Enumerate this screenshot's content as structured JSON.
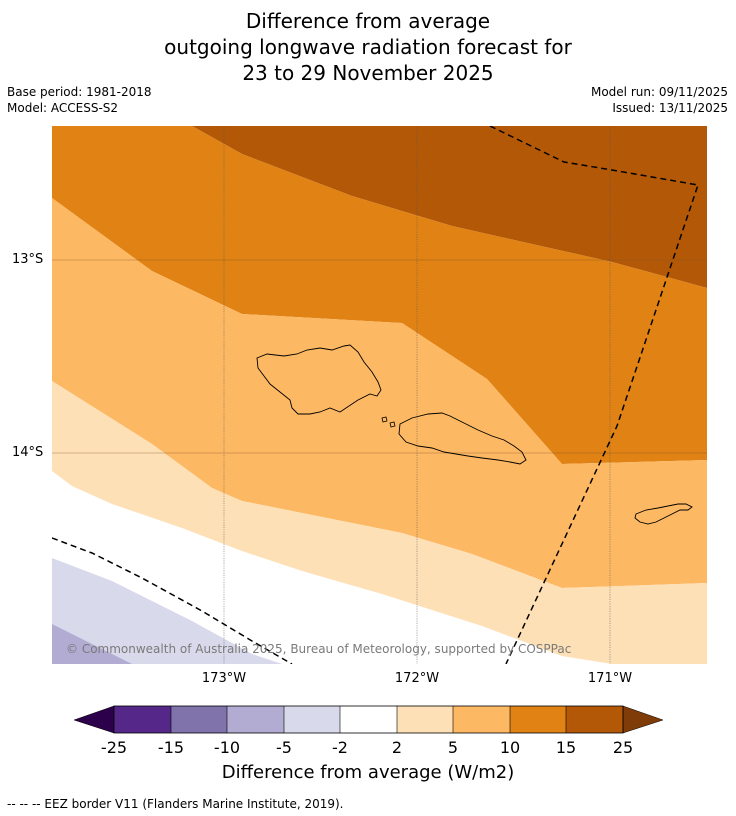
{
  "title": {
    "line1": "Difference from average",
    "line2": "outgoing longwave radiation forecast for",
    "line3": "23 to 29 November 2025"
  },
  "meta": {
    "base_period": "Base period: 1981-2018",
    "model": "Model: ACCESS-S2",
    "model_run": "Model run: 09/11/2025",
    "issued": "Issued: 13/11/2025"
  },
  "axes": {
    "lat_labels": [
      "13°S",
      "14°S"
    ],
    "lon_labels": [
      "173°W",
      "172°W",
      "171°W"
    ]
  },
  "copyright": "© Commonwealth of Australia 2025, Bureau of Meteorology, supported by COSPPac",
  "colorbar": {
    "labels": [
      "-25",
      "-15",
      "-10",
      "-5",
      "-2",
      "2",
      "5",
      "10",
      "15",
      "25"
    ],
    "title": "Difference from average (W/m2)",
    "colors": {
      "min_ext": "#2d004b",
      "c1": "#542788",
      "c2": "#8073ac",
      "c3": "#b2abd2",
      "c4": "#d8daeb",
      "c5": "#ffffff",
      "c6": "#fee0b6",
      "c7": "#fdb863",
      "c8": "#e08214",
      "c9": "#b35806",
      "max_ext": "#7f3b08"
    }
  },
  "footnote": "--  --  -- EEZ border V11 (Flanders Marine Institute, 2019)."
}
